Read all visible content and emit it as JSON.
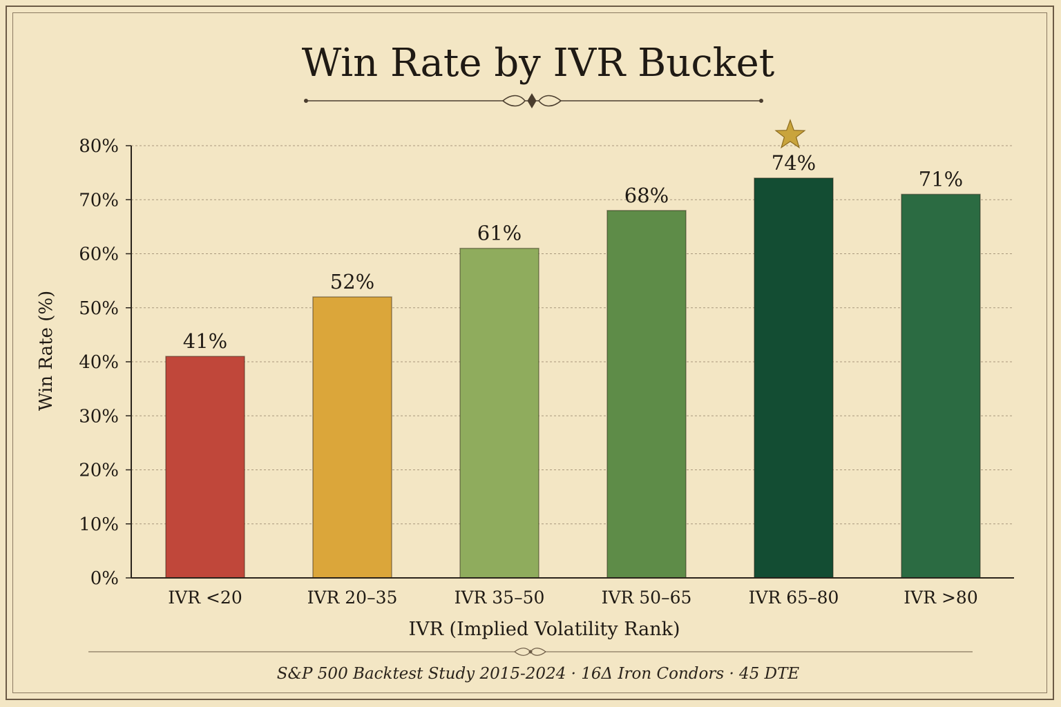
{
  "chart_data": {
    "type": "bar",
    "title": "Win Rate by IVR Bucket",
    "xlabel": "IVR (Implied Volatility Rank)",
    "ylabel": "Win Rate (%)",
    "ylim": [
      0,
      80
    ],
    "grid": true,
    "categories": [
      "IVR <20",
      "IVR 20–35",
      "IVR 35–50",
      "IVR 50–65",
      "IVR 65–80",
      "IVR >80"
    ],
    "values": [
      41,
      52,
      61,
      68,
      74,
      71
    ],
    "value_labels": [
      "41%",
      "52%",
      "61%",
      "68%",
      "74%",
      "71%"
    ],
    "bar_colors": [
      "#c0473a",
      "#dba63a",
      "#8fac5d",
      "#5e8c48",
      "#134d33",
      "#2b6b42"
    ],
    "yticks": [
      0,
      10,
      20,
      30,
      40,
      50,
      60,
      70,
      80
    ],
    "ytick_labels": [
      "0%",
      "10%",
      "20%",
      "30%",
      "40%",
      "50%",
      "60%",
      "70%",
      "80%"
    ],
    "highlight_category": "IVR 65–80",
    "highlight_icon": "star-icon",
    "highlight_color": "#c9a43c",
    "footnote": "S&P 500 Backtest Study 2015-2024 · 16Δ Iron Condors · 45 DTE"
  }
}
